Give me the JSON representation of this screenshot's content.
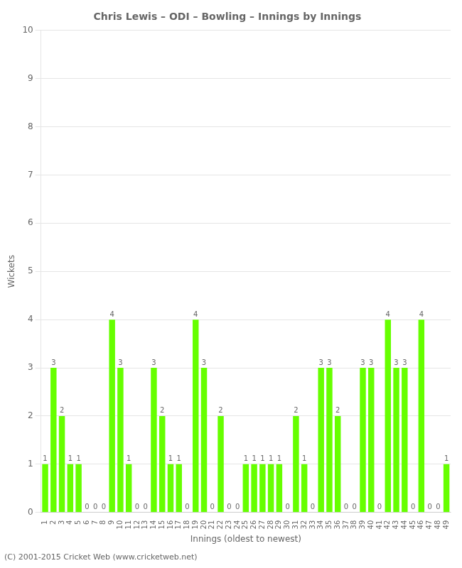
{
  "chart_data": {
    "type": "bar",
    "title": "Chris Lewis – ODI – Bowling – Innings by Innings",
    "xlabel": "Innings (oldest to newest)",
    "ylabel": "Wickets",
    "footer": "(C) 2001-2015 Cricket Web (www.cricketweb.net)",
    "categories": [
      "1",
      "2",
      "3",
      "4",
      "5",
      "6",
      "7",
      "8",
      "9",
      "10",
      "11",
      "12",
      "13",
      "14",
      "15",
      "16",
      "17",
      "18",
      "19",
      "20",
      "21",
      "22",
      "23",
      "24",
      "25",
      "26",
      "27",
      "28",
      "29",
      "30",
      "31",
      "32",
      "33",
      "34",
      "35",
      "36",
      "37",
      "38",
      "39",
      "40",
      "41",
      "42",
      "43",
      "44",
      "45",
      "46",
      "47",
      "48",
      "49"
    ],
    "values": [
      1,
      3,
      2,
      1,
      1,
      0,
      0,
      0,
      4,
      3,
      1,
      0,
      0,
      3,
      2,
      1,
      1,
      0,
      4,
      3,
      0,
      2,
      0,
      0,
      1,
      1,
      1,
      1,
      1,
      0,
      2,
      1,
      0,
      3,
      3,
      2,
      0,
      0,
      3,
      3,
      0,
      4,
      3,
      3,
      0,
      4,
      0,
      0,
      1
    ],
    "color": "#66FF00",
    "ylim": [
      0,
      10
    ],
    "yticks": [
      0,
      1,
      2,
      3,
      4,
      5,
      6,
      7,
      8,
      9,
      10
    ],
    "grid": true,
    "data_labels": true
  }
}
